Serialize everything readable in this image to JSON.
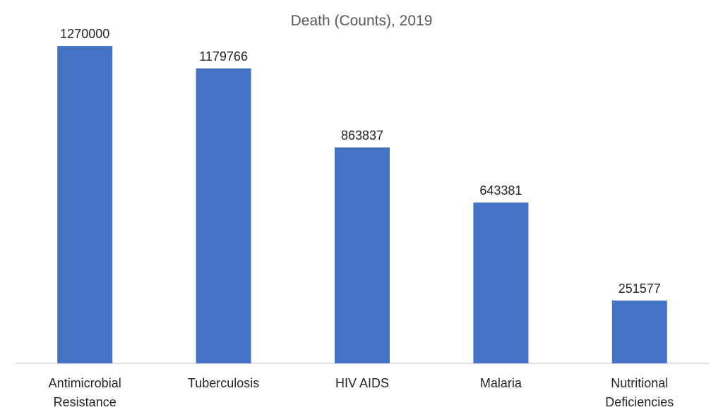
{
  "chart_data": {
    "type": "bar",
    "title": "Death (Counts), 2019",
    "xlabel": "",
    "ylabel": "",
    "categories": [
      "Antimicrobial Resistance",
      "Tuberculosis",
      "HIV AIDS",
      "Malaria",
      "Nutritional Deficiencies"
    ],
    "category_lines": [
      [
        "Antimicrobial",
        "Resistance"
      ],
      [
        "Tuberculosis"
      ],
      [
        "HIV AIDS"
      ],
      [
        "Malaria"
      ],
      [
        "Nutritional",
        "Deficiencies"
      ]
    ],
    "values": [
      1270000,
      1179766,
      863837,
      643381,
      251577
    ],
    "data_labels": [
      "1270000",
      "1179766",
      "863837",
      "643381",
      "251577"
    ],
    "ylim": [
      0,
      1400000
    ],
    "grid": false,
    "legend": "none",
    "bar_color": "#4472C4"
  }
}
